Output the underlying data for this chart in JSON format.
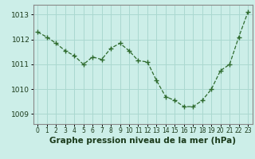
{
  "x": [
    0,
    1,
    2,
    3,
    4,
    5,
    6,
    7,
    8,
    9,
    10,
    11,
    12,
    13,
    14,
    15,
    16,
    17,
    18,
    19,
    20,
    21,
    22,
    23
  ],
  "y": [
    1012.3,
    1012.1,
    1011.85,
    1011.55,
    1011.35,
    1011.0,
    1011.3,
    1011.2,
    1011.65,
    1011.85,
    1011.55,
    1011.15,
    1011.1,
    1010.35,
    1009.7,
    1009.55,
    1009.3,
    1009.3,
    1009.55,
    1010.0,
    1010.75,
    1011.0,
    1012.1,
    1013.1
  ],
  "line_color": "#2d6a2d",
  "marker": "+",
  "bg_color": "#cceee8",
  "grid_color": "#aad8d0",
  "xlabel": "Graphe pression niveau de la mer (hPa)",
  "ylim": [
    1008.6,
    1013.4
  ],
  "xlim": [
    -0.5,
    23.5
  ],
  "yticks": [
    1009,
    1010,
    1011,
    1012,
    1013
  ],
  "xticks": [
    0,
    1,
    2,
    3,
    4,
    5,
    6,
    7,
    8,
    9,
    10,
    11,
    12,
    13,
    14,
    15,
    16,
    17,
    18,
    19,
    20,
    21,
    22,
    23
  ],
  "xlabel_fontsize": 7.5,
  "ytick_fontsize": 6.5,
  "xtick_fontsize": 5.5
}
